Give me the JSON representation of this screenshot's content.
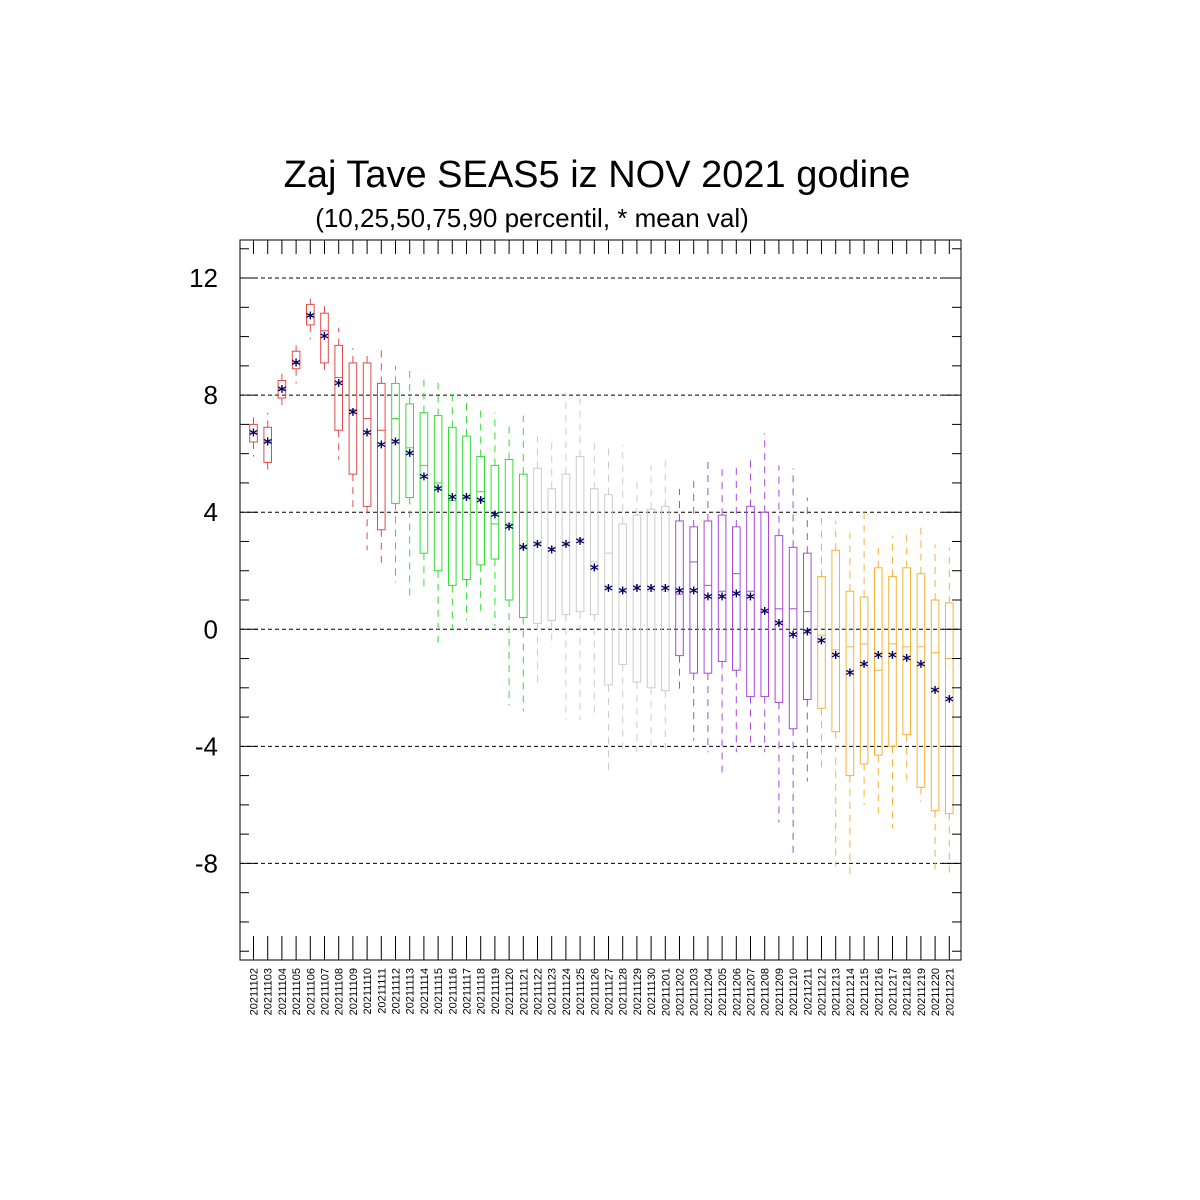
{
  "chart_data": {
    "type": "box",
    "title": "Zaj Tave SEAS5 iz NOV 2021 godine",
    "subtitle": "(10,25,50,75,90 percentil, * mean val)",
    "ylim": [
      -11.3,
      13.3
    ],
    "yticks": [
      12,
      8,
      4,
      0,
      -4,
      -8
    ],
    "ytick_labels": [
      "12",
      "8",
      "4",
      "0",
      "-4",
      "-8"
    ],
    "grid": "horizontal dashed at major ticks",
    "colors": {
      "red": "#e34a4a",
      "green": "#33dd33",
      "gray": "#cccccc",
      "purple": "#a64ad9",
      "orange": "#f5b13a",
      "mean": "#000066"
    },
    "categories": [
      "20211102",
      "20211103",
      "20211104",
      "20211105",
      "20211106",
      "20211107",
      "20211108",
      "20211109",
      "20211110",
      "20211111",
      "20211112",
      "20211113",
      "20211114",
      "20211115",
      "20211116",
      "20211117",
      "20211118",
      "20211119",
      "20211120",
      "20211121",
      "20211122",
      "20211123",
      "20211124",
      "20211125",
      "20211126",
      "20211127",
      "20211128",
      "20211129",
      "20211130",
      "20211201",
      "20211202",
      "20211203",
      "20211204",
      "20211205",
      "20211206",
      "20211207",
      "20211208",
      "20211209",
      "20211210",
      "20211211",
      "20211212",
      "20211213",
      "20211214",
      "20211215",
      "20211216",
      "20211217",
      "20211218",
      "20211219",
      "20211220",
      "20211221"
    ],
    "series_colors": [
      "red",
      "red",
      "red",
      "red",
      "red",
      "red",
      "red",
      "red",
      "red",
      "red",
      "green",
      "green",
      "green",
      "green",
      "green",
      "green",
      "green",
      "green",
      "green",
      "green",
      "gray",
      "gray",
      "gray",
      "gray",
      "gray",
      "gray",
      "gray",
      "gray",
      "gray",
      "gray",
      "purple",
      "purple",
      "purple",
      "purple",
      "purple",
      "purple",
      "purple",
      "purple",
      "purple",
      "purple",
      "orange",
      "orange",
      "orange",
      "orange",
      "orange",
      "orange",
      "orange",
      "orange",
      "orange",
      "orange"
    ],
    "p10": [
      5.9,
      5.4,
      7.5,
      8.4,
      9.9,
      8.8,
      5.8,
      4.0,
      2.7,
      2.1,
      1.6,
      1.1,
      1.3,
      -0.5,
      0.0,
      0.3,
      0.5,
      0.1,
      -2.6,
      -2.8,
      -1.9,
      -0.6,
      -3.1,
      -3.1,
      -2.9,
      -4.8,
      -4.1,
      -4.2,
      -4.0,
      -4.1,
      -2.2,
      -3.8,
      -4.2,
      -5.1,
      -4.2,
      -4.0,
      -4.2,
      -6.6,
      -7.8,
      -5.2,
      -4.8,
      -8.1,
      -8.4,
      -6.0,
      -6.3,
      -6.8,
      -5.2,
      -5.9,
      -8.3,
      -8.5
    ],
    "p25": [
      6.4,
      5.7,
      7.9,
      8.9,
      10.4,
      9.1,
      6.8,
      5.3,
      4.2,
      3.4,
      4.3,
      4.5,
      2.6,
      2.0,
      1.5,
      1.7,
      2.2,
      2.4,
      1.0,
      0.4,
      0.2,
      0.3,
      0.5,
      0.6,
      0.5,
      -1.9,
      -1.2,
      -1.8,
      -2.0,
      -2.1,
      -0.9,
      -1.5,
      -1.5,
      -1.1,
      -1.4,
      -2.3,
      -2.3,
      -2.5,
      -3.4,
      -2.4,
      -2.7,
      -3.5,
      -5.0,
      -4.6,
      -4.3,
      -4.0,
      -3.6,
      -5.4,
      -6.2,
      -6.3
    ],
    "p50": [
      6.7,
      6.4,
      8.2,
      9.1,
      10.7,
      10.2,
      8.6,
      7.5,
      7.2,
      6.8,
      7.2,
      6.2,
      5.6,
      5.0,
      4.4,
      4.5,
      4.7,
      3.6,
      3.6,
      2.8,
      2.9,
      2.8,
      2.9,
      3.1,
      2.3,
      2.6,
      1.3,
      1.5,
      1.3,
      1.3,
      1.2,
      2.3,
      1.5,
      1.3,
      1.9,
      1.3,
      0.6,
      0.7,
      0.7,
      0.6,
      -0.2,
      -0.7,
      -0.6,
      -0.5,
      -1.4,
      -0.5,
      -0.6,
      -0.6,
      -0.8,
      -1.0
    ],
    "p75": [
      7.0,
      6.9,
      8.5,
      9.5,
      11.1,
      10.8,
      9.7,
      9.1,
      9.1,
      8.4,
      8.4,
      7.7,
      7.4,
      7.3,
      6.9,
      6.6,
      5.9,
      5.6,
      5.8,
      5.3,
      5.5,
      4.8,
      5.3,
      5.9,
      4.8,
      4.6,
      3.6,
      3.9,
      4.1,
      4.2,
      3.7,
      3.5,
      3.7,
      3.9,
      3.5,
      4.2,
      4.0,
      3.2,
      2.8,
      2.6,
      1.8,
      2.7,
      1.3,
      1.1,
      2.1,
      1.8,
      2.1,
      1.9,
      1.0,
      0.9
    ],
    "p90": [
      7.4,
      7.4,
      8.8,
      9.7,
      11.3,
      11.1,
      10.3,
      9.6,
      9.5,
      9.6,
      9.0,
      9.0,
      8.6,
      8.6,
      8.2,
      8.0,
      7.6,
      7.4,
      7.0,
      7.3,
      6.6,
      6.6,
      8.1,
      8.1,
      6.5,
      6.3,
      6.3,
      5.2,
      5.6,
      5.8,
      4.8,
      5.1,
      5.9,
      5.6,
      5.6,
      5.8,
      6.7,
      5.6,
      5.5,
      4.5,
      3.8,
      3.7,
      3.3,
      4.0,
      3.0,
      3.2,
      3.4,
      3.5,
      2.9,
      2.8
    ],
    "mean": [
      6.7,
      6.4,
      8.2,
      9.1,
      10.7,
      10.0,
      8.4,
      7.4,
      6.7,
      6.3,
      6.4,
      6.0,
      5.2,
      4.8,
      4.5,
      4.5,
      4.4,
      3.9,
      3.5,
      2.8,
      2.9,
      2.7,
      2.9,
      3.0,
      2.1,
      1.4,
      1.3,
      1.4,
      1.4,
      1.4,
      1.3,
      1.3,
      1.1,
      1.1,
      1.2,
      1.1,
      0.6,
      0.2,
      -0.2,
      -0.1,
      -0.4,
      -0.9,
      -1.5,
      -1.2,
      -0.9,
      -0.9,
      -1.0,
      -1.2,
      -2.1,
      -2.4
    ]
  }
}
